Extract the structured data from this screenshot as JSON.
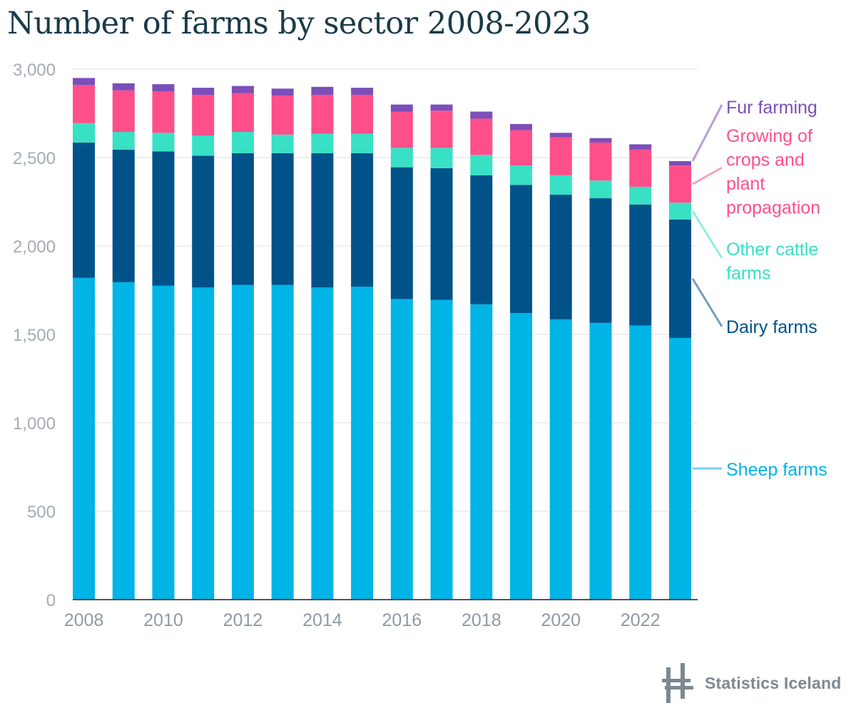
{
  "page": {
    "title": "Number of farms by sector 2008-2023",
    "logo_text": "Statistics Iceland"
  },
  "chart_data": {
    "type": "bar",
    "stacked": true,
    "title": "Number of farms by sector 2008-2023",
    "xlabel": "",
    "ylabel": "",
    "ylim": [
      0,
      3000
    ],
    "y_ticks": [
      0,
      500,
      1000,
      1500,
      2000,
      2500,
      3000
    ],
    "y_tick_labels": [
      "0",
      "500",
      "1,000",
      "1,500",
      "2,000",
      "2,500",
      "3,000"
    ],
    "categories": [
      "2008",
      "2009",
      "2010",
      "2011",
      "2012",
      "2013",
      "2014",
      "2015",
      "2016",
      "2017",
      "2018",
      "2019",
      "2020",
      "2021",
      "2022",
      "2023"
    ],
    "x_tick_labels": [
      "2008",
      "2010",
      "2012",
      "2014",
      "2016",
      "2018",
      "2020",
      "2022"
    ],
    "grid": true,
    "legend_position": "right, labels beside last bar",
    "series": [
      {
        "name": "Sheep farms",
        "color": "#00b4e6",
        "values": [
          1820,
          1795,
          1775,
          1765,
          1780,
          1780,
          1765,
          1770,
          1700,
          1695,
          1670,
          1620,
          1585,
          1565,
          1550,
          1480
        ]
      },
      {
        "name": "Dairy farms",
        "color": "#005288",
        "values": [
          765,
          750,
          760,
          745,
          745,
          745,
          760,
          755,
          745,
          745,
          730,
          725,
          705,
          705,
          685,
          670
        ]
      },
      {
        "name": "Other cattle farms",
        "color": "#38e0c4",
        "values": [
          110,
          100,
          105,
          115,
          120,
          105,
          110,
          110,
          110,
          115,
          115,
          110,
          110,
          100,
          100,
          95
        ]
      },
      {
        "name": "Growing of crops and plant propagation",
        "color": "#ff4f8b",
        "values": [
          215,
          235,
          235,
          230,
          220,
          220,
          220,
          220,
          205,
          210,
          205,
          200,
          215,
          215,
          210,
          210
        ]
      },
      {
        "name": "Fur farming",
        "color": "#7b4fb8",
        "values": [
          40,
          40,
          40,
          40,
          40,
          40,
          45,
          40,
          40,
          35,
          40,
          35,
          25,
          25,
          30,
          25
        ]
      }
    ],
    "legend_labels": [
      {
        "series": "Fur farming",
        "lines": [
          "Fur farming"
        ],
        "color": "#7b4fb8"
      },
      {
        "series": "Growing of crops and plant propagation",
        "lines": [
          "Growing of",
          "crops and",
          "plant",
          "propagation"
        ],
        "color": "#ff4f8b"
      },
      {
        "series": "Other cattle farms",
        "lines": [
          "Other cattle",
          "farms"
        ],
        "color": "#38e0c4"
      },
      {
        "series": "Dairy farms",
        "lines": [
          "Dairy farms"
        ],
        "color": "#005288"
      },
      {
        "series": "Sheep farms",
        "lines": [
          "Sheep farms"
        ],
        "color": "#00b4e6"
      }
    ]
  }
}
